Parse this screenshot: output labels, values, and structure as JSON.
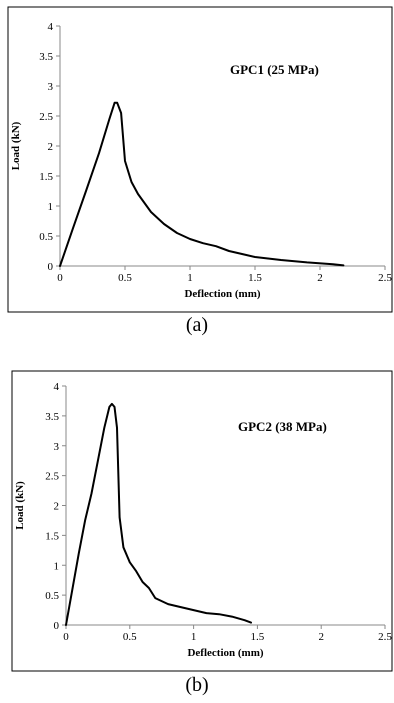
{
  "chart_data": [
    {
      "type": "line",
      "title": "GPC1 (25 MPa)",
      "xlabel": "Deflection (mm)",
      "ylabel": "Load (kN)",
      "xlim": [
        0,
        2.5
      ],
      "ylim": [
        0,
        4
      ],
      "xticks": [
        "0",
        "0.5",
        "1",
        "1.5",
        "2",
        "2.5"
      ],
      "yticks": [
        "0",
        "0.5",
        "1",
        "1.5",
        "2",
        "2.5",
        "3",
        "3.5",
        "4"
      ],
      "grid": false,
      "caption": "(a)",
      "series": [
        {
          "color": "#000000",
          "x": [
            0,
            0.1,
            0.2,
            0.3,
            0.38,
            0.42,
            0.44,
            0.47,
            0.5,
            0.55,
            0.6,
            0.7,
            0.8,
            0.9,
            1.0,
            1.1,
            1.2,
            1.3,
            1.4,
            1.5,
            1.7,
            1.9,
            2.1,
            2.18
          ],
          "y": [
            0,
            0.63,
            1.25,
            1.88,
            2.45,
            2.72,
            2.72,
            2.55,
            1.75,
            1.4,
            1.2,
            0.9,
            0.7,
            0.55,
            0.45,
            0.38,
            0.33,
            0.25,
            0.2,
            0.15,
            0.1,
            0.06,
            0.03,
            0.01
          ]
        }
      ]
    },
    {
      "type": "line",
      "title": "GPC2 (38 MPa)",
      "xlabel": "Deflection (mm)",
      "ylabel": "Load (kN)",
      "xlim": [
        0,
        2.5
      ],
      "ylim": [
        0,
        4
      ],
      "xticks": [
        "0",
        "0.5",
        "1",
        "1.5",
        "2",
        "2.5"
      ],
      "yticks": [
        "0",
        "0.5",
        "1",
        "1.5",
        "2",
        "2.5",
        "3",
        "3.5",
        "4"
      ],
      "grid": false,
      "caption": "(b)",
      "series": [
        {
          "color": "#000000",
          "x": [
            0,
            0.05,
            0.1,
            0.15,
            0.2,
            0.25,
            0.3,
            0.34,
            0.36,
            0.38,
            0.4,
            0.42,
            0.45,
            0.5,
            0.55,
            0.6,
            0.65,
            0.7,
            0.8,
            0.9,
            1.0,
            1.1,
            1.2,
            1.3,
            1.4,
            1.45
          ],
          "y": [
            0,
            0.6,
            1.2,
            1.75,
            2.2,
            2.75,
            3.3,
            3.65,
            3.7,
            3.65,
            3.3,
            1.8,
            1.3,
            1.05,
            0.9,
            0.72,
            0.62,
            0.45,
            0.35,
            0.3,
            0.25,
            0.2,
            0.18,
            0.14,
            0.08,
            0.04
          ]
        }
      ]
    }
  ]
}
